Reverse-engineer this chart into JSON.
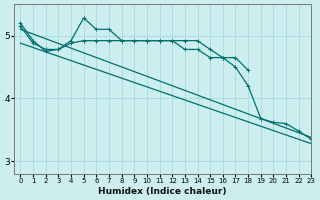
{
  "xlabel": "Humidex (Indice chaleur)",
  "ylabel": "",
  "bg_color": "#cceeee",
  "grid_color": "#aadddd",
  "line_color": "#007070",
  "xlim": [
    -0.5,
    23
  ],
  "ylim": [
    2.8,
    5.5
  ],
  "yticks": [
    3,
    4,
    5
  ],
  "xticks": [
    0,
    1,
    2,
    3,
    4,
    5,
    6,
    7,
    8,
    9,
    10,
    11,
    12,
    13,
    14,
    15,
    16,
    17,
    18,
    19,
    20,
    21,
    22,
    23
  ],
  "series": [
    {
      "x": [
        0,
        1,
        2,
        3,
        4,
        5,
        6,
        7,
        8,
        9,
        10,
        11,
        12,
        13,
        14,
        15,
        16,
        17,
        18
      ],
      "y": [
        5.2,
        4.92,
        4.75,
        4.78,
        4.92,
        5.28,
        5.1,
        5.1,
        4.92,
        4.92,
        4.92,
        4.92,
        4.92,
        4.78,
        4.78,
        4.65,
        4.65,
        4.65,
        4.45
      ]
    },
    {
      "x": [
        0,
        1,
        2,
        3,
        4,
        5,
        6,
        7,
        8,
        9,
        10,
        11,
        12,
        13,
        14,
        15,
        16,
        17,
        18,
        19,
        20,
        21,
        22,
        23
      ],
      "y": [
        5.15,
        4.88,
        4.78,
        4.78,
        4.88,
        4.92,
        4.92,
        4.92,
        4.92,
        4.92,
        4.92,
        4.92,
        4.92,
        4.92,
        4.92,
        4.78,
        4.65,
        4.5,
        4.2,
        3.68,
        3.62,
        3.6,
        3.48,
        3.35
      ]
    },
    {
      "x": [
        0,
        23
      ],
      "y": [
        5.1,
        3.38
      ]
    },
    {
      "x": [
        0,
        23
      ],
      "y": [
        4.88,
        3.28
      ]
    }
  ]
}
